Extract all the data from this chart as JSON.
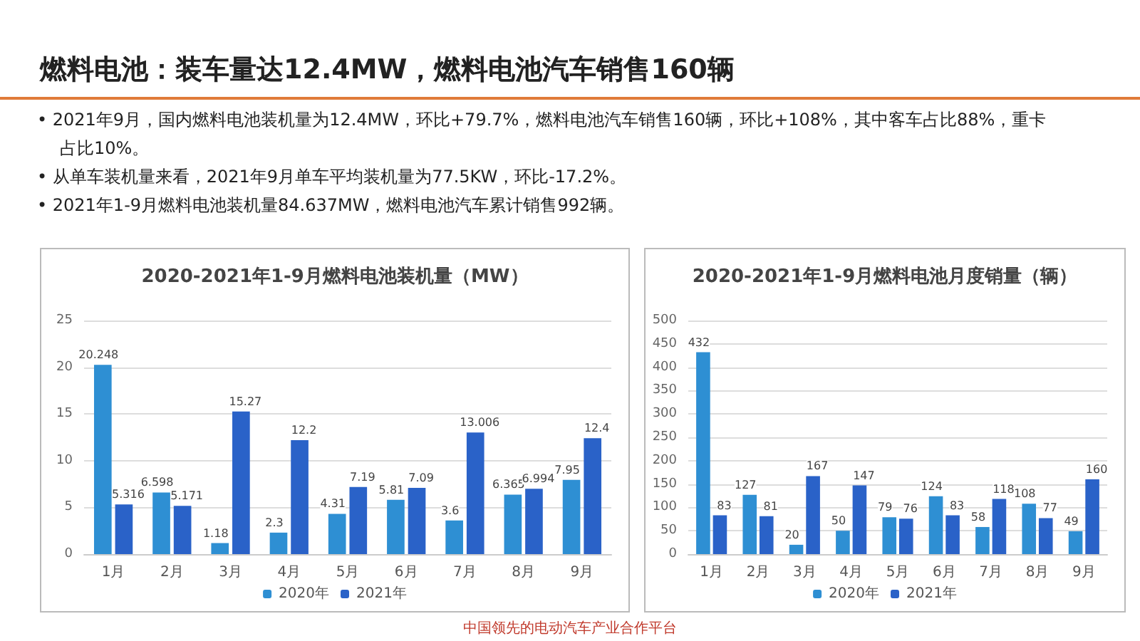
{
  "chart_data": [
    {
      "type": "other",
      "title": "燃料电池：装车量达12.4MW，燃料电池汽车销售160辆",
      "annotations": [
        "• 2021年9月，国内燃料电池装机量为12.4MW，环比+79.7%，燃料电池汽车销售160辆，环比+108%，其中客车占比88%，重卡占比10%。",
        "• 从单车装机量来看，2021年9月单车平均装机量为77.5KW，环比-17.2%。",
        "• 2021年1-9月燃料电池装机量84.637MW，燃料电池汽车累计销售992辆。",
        "中国领先的电动汽车产业合作平台"
      ]
    },
    {
      "type": "bar",
      "title": "2020-2021年1-9月燃料电池装机量（MW）",
      "categories": [
        "1月",
        "2月",
        "3月",
        "4月",
        "5月",
        "6月",
        "7月",
        "8月",
        "9月"
      ],
      "series": [
        {
          "name": "2020年",
          "color": "#2e8fd3",
          "values": [
            20.248,
            6.598,
            1.18,
            2.3,
            4.31,
            5.81,
            3.6,
            6.365,
            7.95
          ]
        },
        {
          "name": "2021年",
          "color": "#2a62c8",
          "values": [
            5.316,
            5.171,
            15.27,
            12.2,
            7.19,
            7.09,
            13.006,
            6.994,
            12.4
          ]
        }
      ],
      "ylim": [
        0,
        25
      ],
      "yticks": [
        0,
        5,
        10,
        15,
        20,
        25
      ],
      "grid": "y",
      "legend": "bottom",
      "data_labels": true
    },
    {
      "type": "bar",
      "title": "2020-2021年1-9月燃料电池月度销量（辆）",
      "categories": [
        "1月",
        "2月",
        "3月",
        "4月",
        "5月",
        "6月",
        "7月",
        "8月",
        "9月"
      ],
      "series": [
        {
          "name": "2020年",
          "color": "#2e8fd3",
          "values": [
            432,
            127,
            20,
            50,
            79,
            124,
            58,
            108,
            49
          ]
        },
        {
          "name": "2021年",
          "color": "#2a62c8",
          "values": [
            83,
            81,
            167,
            147,
            76,
            83,
            118,
            77,
            160
          ]
        }
      ],
      "ylim": [
        0,
        500
      ],
      "yticks": [
        0,
        50,
        100,
        150,
        200,
        250,
        300,
        350,
        400,
        450,
        500
      ],
      "grid": "y",
      "legend": "bottom",
      "data_labels": true
    }
  ]
}
